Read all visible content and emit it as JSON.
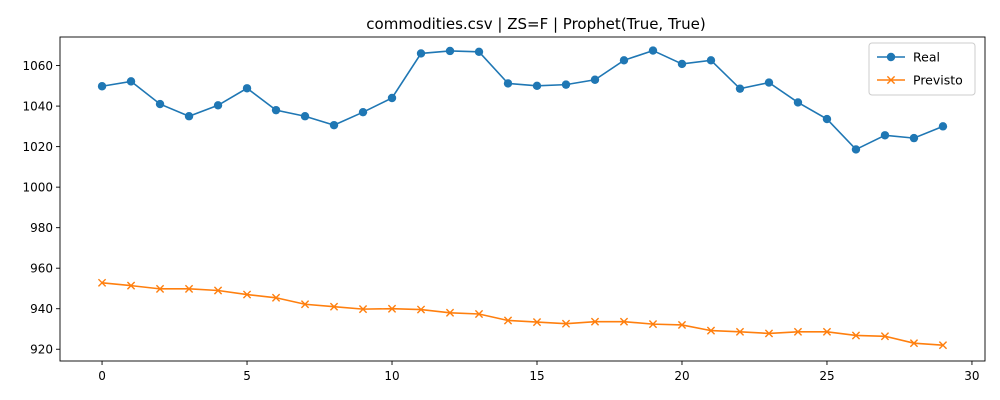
{
  "chart_data": {
    "type": "line",
    "title": "commodities.csv | ZS=F | Prophet(True, True)",
    "xlabel": "",
    "ylabel": "",
    "x": [
      0,
      1,
      2,
      3,
      4,
      5,
      6,
      7,
      8,
      9,
      10,
      11,
      12,
      13,
      14,
      15,
      16,
      17,
      18,
      19,
      20,
      21,
      22,
      23,
      24,
      25,
      26,
      27,
      28,
      29
    ],
    "xlim": [
      -1.45,
      30.45
    ],
    "ylim": [
      914.2,
      1074.1
    ],
    "xticks": [
      0,
      5,
      10,
      15,
      20,
      25,
      30
    ],
    "xtick_labels": [
      "0",
      "5",
      "10",
      "15",
      "20",
      "25",
      "30"
    ],
    "yticks": [
      920,
      940,
      960,
      980,
      1000,
      1020,
      1040,
      1060
    ],
    "ytick_labels": [
      "920",
      "940",
      "960",
      "980",
      "1000",
      "1020",
      "1040",
      "1060"
    ],
    "grid": false,
    "legend_position": "top-right",
    "series": [
      {
        "name": "Real",
        "color": "#1f77b4",
        "marker": "circle",
        "values": [
          1049.8,
          1052.2,
          1041.0,
          1035.0,
          1040.4,
          1048.8,
          1038.0,
          1035.0,
          1030.6,
          1037.0,
          1044.0,
          1066.0,
          1067.2,
          1066.8,
          1051.2,
          1050.0,
          1050.6,
          1053.0,
          1062.6,
          1067.4,
          1060.8,
          1062.6,
          1048.6,
          1051.6,
          1041.8,
          1033.6,
          1018.6,
          1025.6,
          1024.2,
          1030.0
        ]
      },
      {
        "name": "Previsto",
        "color": "#ff7f0e",
        "marker": "x",
        "values": [
          952.8,
          951.4,
          949.8,
          949.8,
          949.0,
          947.0,
          945.4,
          942.2,
          941.0,
          939.8,
          940.0,
          939.6,
          938.0,
          937.4,
          934.2,
          933.4,
          932.6,
          933.6,
          933.6,
          932.4,
          932.0,
          929.2,
          928.6,
          927.8,
          928.6,
          928.6,
          926.8,
          926.4,
          923.0,
          922.0
        ]
      }
    ]
  }
}
